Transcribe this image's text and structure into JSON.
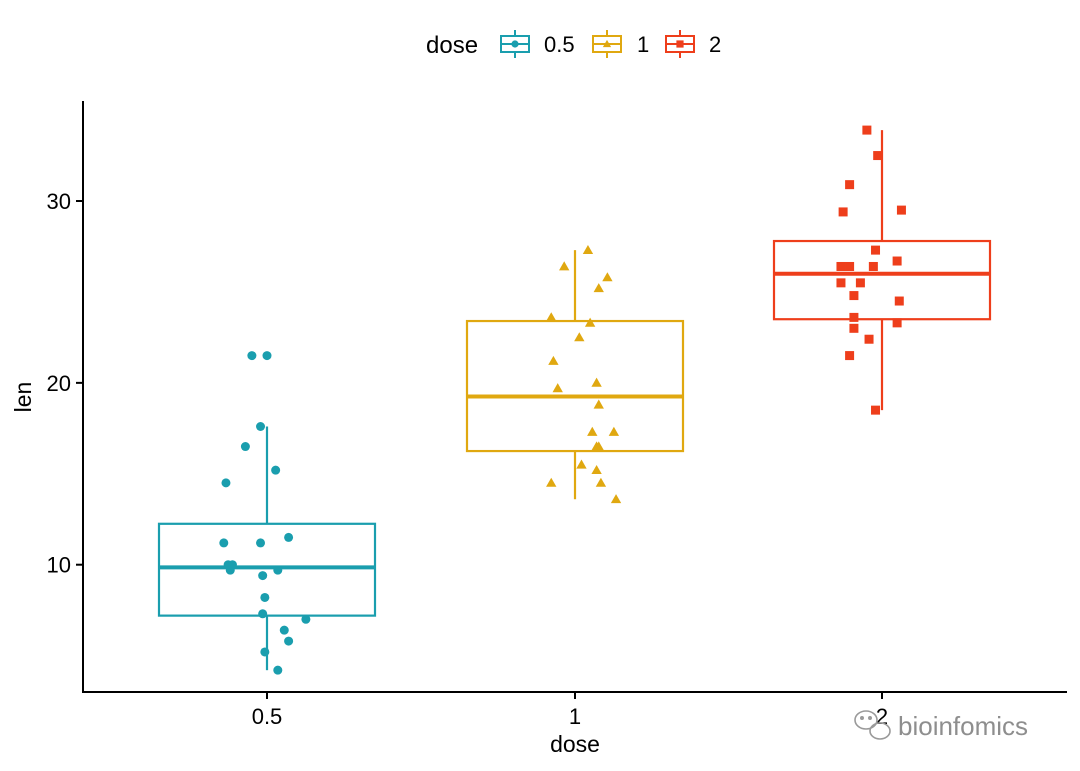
{
  "chart_data": {
    "type": "box",
    "xlabel": "dose",
    "ylabel": "len",
    "categories": [
      "0.5",
      "1",
      "2"
    ],
    "ylim": [
      3,
      35.5
    ],
    "yticks": [
      10,
      20,
      30
    ],
    "grid": false,
    "legend": {
      "title": "dose",
      "position": "top",
      "entries": [
        {
          "label": "0.5",
          "color": "#1a9eae",
          "marker": "circle"
        },
        {
          "label": "1",
          "color": "#e0a810",
          "marker": "triangle"
        },
        {
          "label": "2",
          "color": "#ee3e1b",
          "marker": "square"
        }
      ]
    },
    "series": [
      {
        "color": "#1a9eae",
        "marker": "circle",
        "box": {
          "min": 4.2,
          "q1": 7.2,
          "median": 9.85,
          "q3": 12.25,
          "max": 17.6
        },
        "points": [
          {
            "x": -0.07,
            "y": 21.5
          },
          {
            "x": 0.0,
            "y": 21.5
          },
          {
            "x": -0.03,
            "y": 17.6
          },
          {
            "x": -0.1,
            "y": 16.5
          },
          {
            "x": 0.04,
            "y": 15.2
          },
          {
            "x": -0.19,
            "y": 14.5
          },
          {
            "x": 0.1,
            "y": 11.5
          },
          {
            "x": -0.2,
            "y": 11.2
          },
          {
            "x": -0.03,
            "y": 11.2
          },
          {
            "x": -0.18,
            "y": 10.0
          },
          {
            "x": -0.16,
            "y": 10.0
          },
          {
            "x": -0.17,
            "y": 9.7
          },
          {
            "x": 0.05,
            "y": 9.7
          },
          {
            "x": -0.02,
            "y": 9.4
          },
          {
            "x": -0.01,
            "y": 8.2
          },
          {
            "x": -0.02,
            "y": 7.3
          },
          {
            "x": 0.18,
            "y": 7.0
          },
          {
            "x": 0.08,
            "y": 6.4
          },
          {
            "x": 0.1,
            "y": 5.8
          },
          {
            "x": -0.01,
            "y": 5.2
          },
          {
            "x": 0.05,
            "y": 4.2
          }
        ]
      },
      {
        "color": "#e0a810",
        "marker": "triangle",
        "box": {
          "min": 13.6,
          "q1": 16.25,
          "median": 19.25,
          "q3": 23.4,
          "max": 27.3
        },
        "points": [
          {
            "x": 0.06,
            "y": 27.3
          },
          {
            "x": -0.05,
            "y": 26.4
          },
          {
            "x": 0.15,
            "y": 25.8
          },
          {
            "x": 0.11,
            "y": 25.2
          },
          {
            "x": -0.11,
            "y": 23.6
          },
          {
            "x": 0.07,
            "y": 23.3
          },
          {
            "x": 0.02,
            "y": 22.5
          },
          {
            "x": -0.1,
            "y": 21.2
          },
          {
            "x": -0.08,
            "y": 19.7
          },
          {
            "x": 0.1,
            "y": 20.0
          },
          {
            "x": 0.11,
            "y": 18.8
          },
          {
            "x": 0.08,
            "y": 17.3
          },
          {
            "x": 0.18,
            "y": 17.3
          },
          {
            "x": 0.1,
            "y": 16.5
          },
          {
            "x": 0.11,
            "y": 16.5
          },
          {
            "x": 0.03,
            "y": 15.5
          },
          {
            "x": 0.1,
            "y": 15.2
          },
          {
            "x": 0.12,
            "y": 14.5
          },
          {
            "x": -0.11,
            "y": 14.5
          },
          {
            "x": 0.19,
            "y": 13.6
          }
        ]
      },
      {
        "color": "#ee3e1b",
        "marker": "square",
        "box": {
          "min": 18.5,
          "q1": 23.5,
          "median": 26.0,
          "q3": 27.8,
          "max": 33.9
        },
        "points": [
          {
            "x": -0.07,
            "y": 33.9
          },
          {
            "x": -0.02,
            "y": 32.5
          },
          {
            "x": -0.15,
            "y": 30.9
          },
          {
            "x": -0.18,
            "y": 29.4
          },
          {
            "x": 0.09,
            "y": 29.5
          },
          {
            "x": -0.03,
            "y": 27.3
          },
          {
            "x": 0.07,
            "y": 26.7
          },
          {
            "x": -0.19,
            "y": 26.4
          },
          {
            "x": -0.15,
            "y": 26.4
          },
          {
            "x": -0.04,
            "y": 26.4
          },
          {
            "x": -0.19,
            "y": 25.5
          },
          {
            "x": -0.1,
            "y": 25.5
          },
          {
            "x": -0.13,
            "y": 24.8
          },
          {
            "x": 0.08,
            "y": 24.5
          },
          {
            "x": -0.13,
            "y": 23.6
          },
          {
            "x": -0.13,
            "y": 23.0
          },
          {
            "x": 0.07,
            "y": 23.3
          },
          {
            "x": -0.06,
            "y": 22.4
          },
          {
            "x": -0.15,
            "y": 21.5
          },
          {
            "x": -0.03,
            "y": 18.5
          }
        ]
      }
    ]
  },
  "watermark": {
    "text": "bioinfomics"
  }
}
